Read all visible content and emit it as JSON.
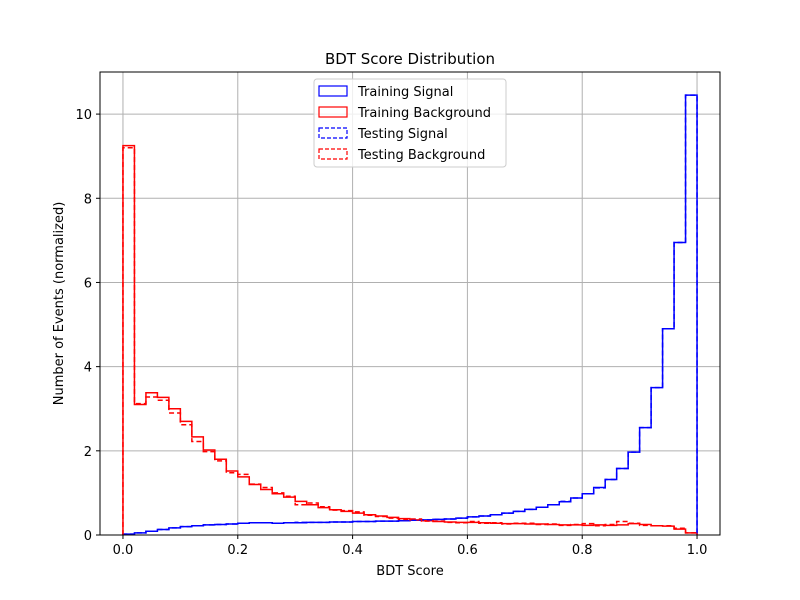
{
  "chart_data": {
    "type": "histogram-step",
    "title": "BDT Score Distribution",
    "xlabel": "BDT Score",
    "ylabel": "Number of Events (normalized)",
    "xlim": [
      -0.04,
      1.04
    ],
    "ylim": [
      0,
      11
    ],
    "xticks": [
      0.0,
      0.2,
      0.4,
      0.6,
      0.8,
      1.0
    ],
    "xtick_labels": [
      "0.0",
      "0.2",
      "0.4",
      "0.6",
      "0.8",
      "1.0"
    ],
    "yticks": [
      0,
      2,
      4,
      6,
      8,
      10
    ],
    "ytick_labels": [
      "0",
      "2",
      "4",
      "6",
      "8",
      "10"
    ],
    "grid": true,
    "legend_position": "upper-center",
    "bin_edges_range": [
      0,
      1
    ],
    "n_bins": 50,
    "series": [
      {
        "name": "Training Signal",
        "color": "#0000ff",
        "linestyle": "solid",
        "values": [
          0.02,
          0.05,
          0.09,
          0.13,
          0.17,
          0.2,
          0.22,
          0.24,
          0.25,
          0.26,
          0.28,
          0.29,
          0.29,
          0.28,
          0.29,
          0.29,
          0.3,
          0.3,
          0.31,
          0.31,
          0.32,
          0.32,
          0.33,
          0.33,
          0.34,
          0.35,
          0.36,
          0.37,
          0.38,
          0.4,
          0.43,
          0.45,
          0.48,
          0.52,
          0.56,
          0.61,
          0.66,
          0.72,
          0.79,
          0.88,
          0.98,
          1.13,
          1.32,
          1.58,
          1.97,
          2.55,
          3.5,
          4.9,
          6.95,
          10.45
        ]
      },
      {
        "name": "Training Background",
        "color": "#ff0000",
        "linestyle": "solid",
        "values": [
          9.25,
          3.1,
          3.38,
          3.27,
          3.0,
          2.7,
          2.33,
          2.02,
          1.8,
          1.52,
          1.38,
          1.2,
          1.08,
          0.98,
          0.9,
          0.8,
          0.72,
          0.65,
          0.6,
          0.56,
          0.52,
          0.48,
          0.45,
          0.42,
          0.39,
          0.36,
          0.34,
          0.32,
          0.31,
          0.3,
          0.3,
          0.29,
          0.28,
          0.27,
          0.27,
          0.26,
          0.26,
          0.25,
          0.24,
          0.24,
          0.23,
          0.24,
          0.23,
          0.24,
          0.27,
          0.25,
          0.22,
          0.21,
          0.14,
          0.05
        ]
      },
      {
        "name": "Testing Signal",
        "color": "#0000ff",
        "linestyle": "dashed",
        "values": [
          0.02,
          0.05,
          0.09,
          0.13,
          0.17,
          0.2,
          0.22,
          0.24,
          0.25,
          0.26,
          0.28,
          0.29,
          0.29,
          0.28,
          0.29,
          0.3,
          0.3,
          0.3,
          0.31,
          0.31,
          0.32,
          0.32,
          0.33,
          0.33,
          0.34,
          0.35,
          0.36,
          0.37,
          0.38,
          0.4,
          0.43,
          0.45,
          0.48,
          0.52,
          0.56,
          0.61,
          0.66,
          0.72,
          0.8,
          0.88,
          0.98,
          1.12,
          1.32,
          1.58,
          1.97,
          2.55,
          3.5,
          4.9,
          6.95,
          10.45
        ]
      },
      {
        "name": "Testing Background",
        "color": "#ff0000",
        "linestyle": "dashed",
        "values": [
          9.2,
          3.12,
          3.28,
          3.2,
          2.9,
          2.62,
          2.22,
          1.98,
          1.76,
          1.48,
          1.44,
          1.21,
          1.13,
          1.0,
          0.92,
          0.72,
          0.76,
          0.67,
          0.59,
          0.58,
          0.55,
          0.47,
          0.44,
          0.4,
          0.37,
          0.38,
          0.33,
          0.33,
          0.3,
          0.29,
          0.32,
          0.28,
          0.29,
          0.26,
          0.28,
          0.28,
          0.25,
          0.26,
          0.23,
          0.25,
          0.27,
          0.22,
          0.25,
          0.32,
          0.28,
          0.23,
          0.22,
          0.22,
          0.16,
          0.05
        ]
      }
    ]
  }
}
